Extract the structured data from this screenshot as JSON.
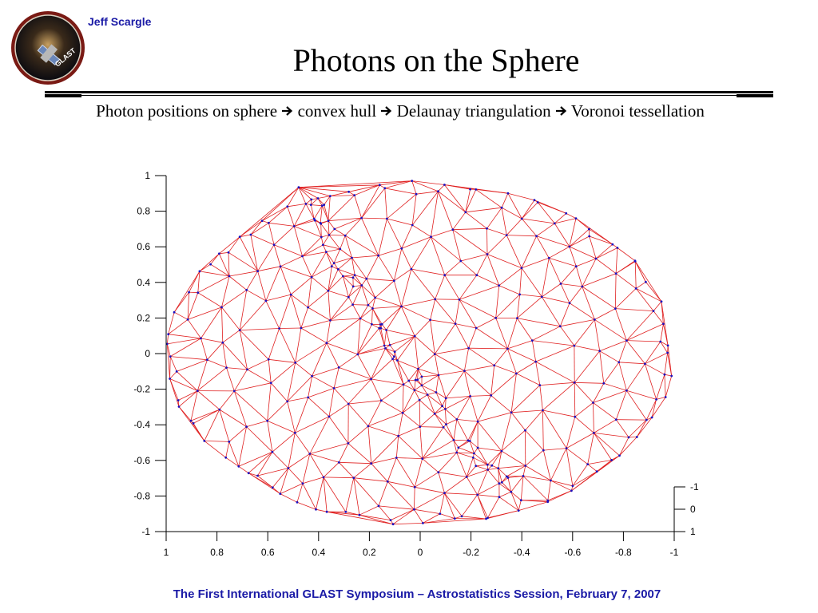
{
  "header": {
    "author": "Jeff Scargle",
    "title": "Photons on the Sphere",
    "logo_icon": "glast-mission-logo",
    "logo_text": "GLAST"
  },
  "subtitle": {
    "steps": [
      "Photon positions on sphere",
      "convex hull",
      "Delaunay triangulation",
      "Voronoi tessellation"
    ],
    "arrow_icon": "right-arrow-icon"
  },
  "figure": {
    "x_axis": {
      "ticks": [
        "1",
        "0.8",
        "0.6",
        "0.4",
        "0.2",
        "0",
        "-0.2",
        "-0.4",
        "-0.6",
        "-0.8",
        "-1"
      ]
    },
    "y_axis": {
      "ticks": [
        "1",
        "0.8",
        "0.6",
        "0.4",
        "0.2",
        "0",
        "-0.2",
        "-0.4",
        "-0.6",
        "-0.8",
        "-1"
      ]
    },
    "z_axis": {
      "ticks": [
        "-1",
        "0",
        "1"
      ]
    },
    "edge_color": "#e02020",
    "point_color": "#1a10c0"
  },
  "footer": "The First International GLAST Symposium – Astrostatistics Session, February 7, 2007"
}
